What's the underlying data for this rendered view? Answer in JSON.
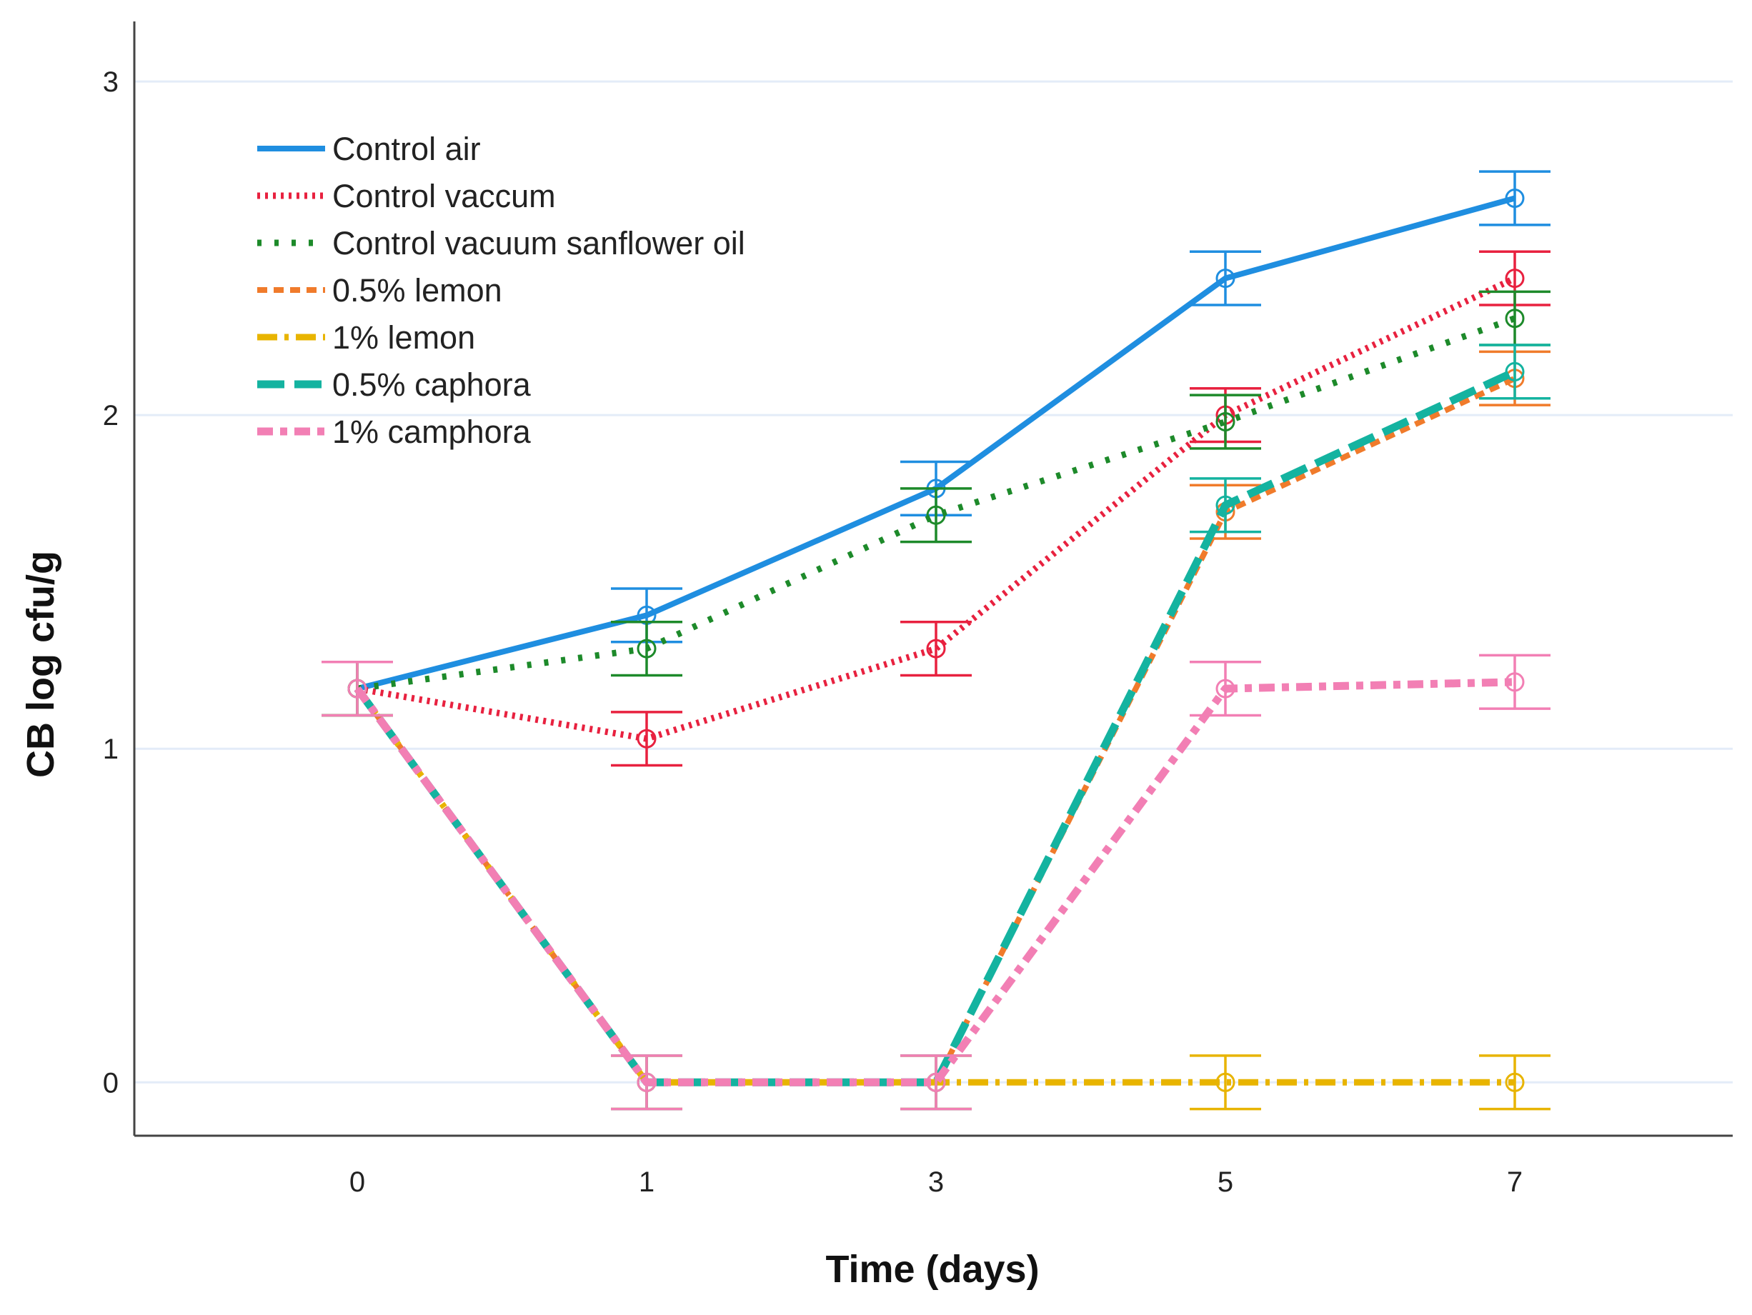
{
  "chart_data": {
    "type": "line",
    "title": "",
    "xlabel": "Time (days)",
    "ylabel": "CB log cfu/g",
    "categories": [
      "0",
      "1",
      "3",
      "5",
      "7"
    ],
    "ylim": [
      -0.16,
      3.18
    ],
    "yticks": [
      0,
      1,
      2,
      3
    ],
    "grid": "horizontal",
    "legend_position": "top-left",
    "series": [
      {
        "name": "Control air",
        "color": "#1f8ee0",
        "dash": "solid",
        "values": [
          1.18,
          1.4,
          1.78,
          2.41,
          2.65
        ],
        "errors": [
          0.08,
          0.08,
          0.08,
          0.08,
          0.08
        ]
      },
      {
        "name": "Control vaccum",
        "color": "#e8213f",
        "dash": "dot",
        "values": [
          1.18,
          1.03,
          1.3,
          2.0,
          2.41
        ],
        "errors": [
          0.08,
          0.08,
          0.08,
          0.08,
          0.08
        ]
      },
      {
        "name": "Control vacuum sanflower oil",
        "color": "#1d8a2a",
        "dash": "dot-wide",
        "values": [
          1.18,
          1.3,
          1.7,
          1.98,
          2.29
        ],
        "errors": [
          0.08,
          0.08,
          0.08,
          0.08,
          0.08
        ]
      },
      {
        "name": "0.5% lemon",
        "color": "#f07b2b",
        "dash": "dash-short",
        "values": [
          1.18,
          0.0,
          0.0,
          1.71,
          2.11
        ],
        "errors": [
          0.08,
          0.08,
          0.08,
          0.08,
          0.08
        ]
      },
      {
        "name": "1% lemon",
        "color": "#e8b400",
        "dash": "dash-dot",
        "values": [
          1.18,
          0.0,
          0.0,
          0.0,
          0.0
        ],
        "errors": [
          0.08,
          0.08,
          0.08,
          0.08,
          0.08
        ]
      },
      {
        "name": "0.5% caphora",
        "color": "#14b3a0",
        "dash": "dash-long",
        "values": [
          1.18,
          0.0,
          0.0,
          1.73,
          2.13
        ],
        "errors": [
          0.08,
          0.08,
          0.08,
          0.08,
          0.08
        ]
      },
      {
        "name": "1% camphora",
        "color": "#f27fb4",
        "dash": "dash-dot-heavy",
        "values": [
          1.18,
          0.0,
          0.0,
          1.18,
          1.2
        ],
        "errors": [
          0.08,
          0.08,
          0.08,
          0.08,
          0.08
        ]
      }
    ]
  }
}
